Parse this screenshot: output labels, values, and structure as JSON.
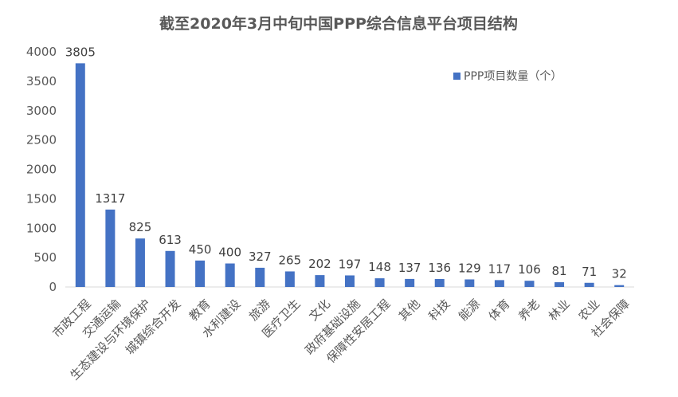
{
  "chart_data": {
    "type": "bar",
    "title": "截至2020年3月中旬中国PPP综合信息平台项目结构",
    "categories": [
      "市政工程",
      "交通运输",
      "生态建设与环境保护",
      "城镇综合开发",
      "教育",
      "水利建设",
      "旅游",
      "医疗卫生",
      "文化",
      "政府基础设施",
      "保障性安居工程",
      "其他",
      "科技",
      "能源",
      "体育",
      "养老",
      "林业",
      "农业",
      "社会保障"
    ],
    "series": [
      {
        "name": "PPP项目数量（个）",
        "values": [
          3805,
          1317,
          825,
          613,
          450,
          400,
          327,
          265,
          202,
          197,
          148,
          137,
          136,
          129,
          117,
          106,
          81,
          71,
          32
        ],
        "color": "#4472C4"
      }
    ],
    "ylim": [
      0,
      4000
    ],
    "yticks": [
      0,
      500,
      1000,
      1500,
      2000,
      2500,
      3000,
      3500,
      4000
    ],
    "grid": false,
    "legend_position": "top-right",
    "data_labels": true
  }
}
